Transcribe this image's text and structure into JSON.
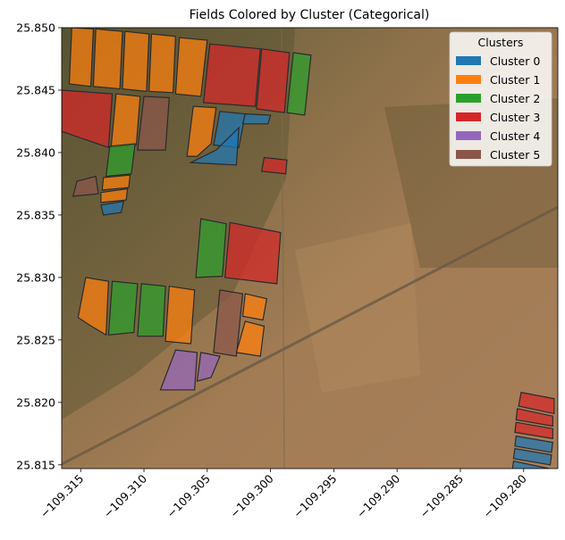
{
  "chart_data": {
    "type": "map",
    "title": "Fields Colored by Cluster (Categorical)",
    "xlabel": "",
    "ylabel": "",
    "xlim": [
      -109.3165,
      -109.2773
    ],
    "ylim": [
      25.8147,
      25.85
    ],
    "xticks": [
      -109.315,
      -109.31,
      -109.305,
      -109.3,
      -109.295,
      -109.29,
      -109.285,
      -109.28
    ],
    "xtick_labels": [
      "−109.315",
      "−109.310",
      "−109.305",
      "−109.300",
      "−109.295",
      "−109.290",
      "−109.285",
      "−109.280"
    ],
    "yticks": [
      25.815,
      25.82,
      25.825,
      25.83,
      25.835,
      25.84,
      25.845,
      25.85
    ],
    "ytick_labels": [
      "25.815",
      "25.820",
      "25.825",
      "25.830",
      "25.835",
      "25.840",
      "25.845",
      "25.850"
    ],
    "legend": {
      "title": "Clusters",
      "placement": "top-right",
      "entries": [
        {
          "label": "Cluster 0",
          "color": "#1f77b4"
        },
        {
          "label": "Cluster 1",
          "color": "#ff7f0e"
        },
        {
          "label": "Cluster 2",
          "color": "#2ca02c"
        },
        {
          "label": "Cluster 3",
          "color": "#d62728"
        },
        {
          "label": "Cluster 4",
          "color": "#9467bd"
        },
        {
          "label": "Cluster 5",
          "color": "#8c564b"
        }
      ]
    },
    "background": "satellite imagery",
    "fields": [
      {
        "cluster": 1,
        "coords": [
          [
            -109.3157,
            25.85
          ],
          [
            -109.314,
            25.8499
          ],
          [
            -109.3142,
            25.8453
          ],
          [
            -109.3159,
            25.8455
          ]
        ]
      },
      {
        "cluster": 1,
        "coords": [
          [
            -109.3138,
            25.8499
          ],
          [
            -109.3117,
            25.8497
          ],
          [
            -109.3119,
            25.8451
          ],
          [
            -109.314,
            25.8453
          ]
        ]
      },
      {
        "cluster": 1,
        "coords": [
          [
            -109.3115,
            25.8497
          ],
          [
            -109.3096,
            25.8495
          ],
          [
            -109.3098,
            25.8449
          ],
          [
            -109.3117,
            25.8451
          ]
        ]
      },
      {
        "cluster": 1,
        "coords": [
          [
            -109.3094,
            25.8495
          ],
          [
            -109.3075,
            25.8493
          ],
          [
            -109.3077,
            25.8448
          ],
          [
            -109.3096,
            25.8449
          ]
        ]
      },
      {
        "cluster": 1,
        "coords": [
          [
            -109.3072,
            25.8492
          ],
          [
            -109.305,
            25.849
          ],
          [
            -109.3055,
            25.8445
          ],
          [
            -109.3075,
            25.8447
          ]
        ]
      },
      {
        "cluster": 3,
        "coords": [
          [
            -109.3048,
            25.8487
          ],
          [
            -109.3008,
            25.8483
          ],
          [
            -109.3012,
            25.8437
          ],
          [
            -109.3053,
            25.844
          ]
        ]
      },
      {
        "cluster": 3,
        "coords": [
          [
            -109.3007,
            25.8483
          ],
          [
            -109.2985,
            25.848
          ],
          [
            -109.2989,
            25.8432
          ],
          [
            -109.3011,
            25.8435
          ]
        ]
      },
      {
        "cluster": 2,
        "coords": [
          [
            -109.2982,
            25.848
          ],
          [
            -109.2968,
            25.8478
          ],
          [
            -109.2973,
            25.843
          ],
          [
            -109.2987,
            25.8432
          ]
        ]
      },
      {
        "cluster": 3,
        "coords": [
          [
            -109.3165,
            25.845
          ],
          [
            -109.3125,
            25.8447
          ],
          [
            -109.3128,
            25.8404
          ],
          [
            -109.3165,
            25.8417
          ]
        ]
      },
      {
        "cluster": 1,
        "coords": [
          [
            -109.3122,
            25.8447
          ],
          [
            -109.3103,
            25.8445
          ],
          [
            -109.3106,
            25.8406
          ],
          [
            -109.3126,
            25.8404
          ]
        ]
      },
      {
        "cluster": 5,
        "coords": [
          [
            -109.31,
            25.8445
          ],
          [
            -109.308,
            25.8444
          ],
          [
            -109.3083,
            25.8402
          ],
          [
            -109.3105,
            25.8402
          ]
        ]
      },
      {
        "cluster": 1,
        "coords": [
          [
            -109.3061,
            25.8437
          ],
          [
            -109.3043,
            25.8436
          ],
          [
            -109.3047,
            25.8407
          ],
          [
            -109.3058,
            25.8397
          ],
          [
            -109.3066,
            25.8397
          ]
        ]
      },
      {
        "cluster": 0,
        "coords": [
          [
            -109.304,
            25.8433
          ],
          [
            -109.302,
            25.8431
          ],
          [
            -109.3025,
            25.8404
          ],
          [
            -109.3045,
            25.8406
          ]
        ]
      },
      {
        "cluster": 0,
        "coords": [
          [
            -109.302,
            25.8431
          ],
          [
            -109.3,
            25.843
          ],
          [
            -109.3002,
            25.8423
          ],
          [
            -109.3022,
            25.8423
          ]
        ]
      },
      {
        "cluster": 0,
        "coords": [
          [
            -109.3025,
            25.842
          ],
          [
            -109.3043,
            25.8402
          ],
          [
            -109.3063,
            25.8392
          ],
          [
            -109.3027,
            25.839
          ]
        ]
      },
      {
        "cluster": 3,
        "coords": [
          [
            -109.3005,
            25.8396
          ],
          [
            -109.2987,
            25.8394
          ],
          [
            -109.2988,
            25.8383
          ],
          [
            -109.3007,
            25.8385
          ]
        ]
      },
      {
        "cluster": 2,
        "coords": [
          [
            -109.3127,
            25.8405
          ],
          [
            -109.3107,
            25.8407
          ],
          [
            -109.311,
            25.8383
          ],
          [
            -109.313,
            25.8381
          ]
        ]
      },
      {
        "cluster": 1,
        "coords": [
          [
            -109.3132,
            25.838
          ],
          [
            -109.3111,
            25.8382
          ],
          [
            -109.3112,
            25.8372
          ],
          [
            -109.3133,
            25.837
          ]
        ]
      },
      {
        "cluster": 1,
        "coords": [
          [
            -109.3134,
            25.8368
          ],
          [
            -109.3113,
            25.8371
          ],
          [
            -109.3114,
            25.8362
          ],
          [
            -109.3134,
            25.836
          ]
        ]
      },
      {
        "cluster": 5,
        "coords": [
          [
            -109.3153,
            25.8377
          ],
          [
            -109.3138,
            25.8381
          ],
          [
            -109.3136,
            25.8367
          ],
          [
            -109.3156,
            25.8365
          ]
        ]
      },
      {
        "cluster": 0,
        "coords": [
          [
            -109.3134,
            25.8358
          ],
          [
            -109.3116,
            25.8361
          ],
          [
            -109.3118,
            25.8352
          ],
          [
            -109.3132,
            25.835
          ]
        ]
      },
      {
        "cluster": 2,
        "coords": [
          [
            -109.3055,
            25.8347
          ],
          [
            -109.3035,
            25.8343
          ],
          [
            -109.3038,
            25.8301
          ],
          [
            -109.3059,
            25.83
          ]
        ]
      },
      {
        "cluster": 3,
        "coords": [
          [
            -109.3032,
            25.8344
          ],
          [
            -109.2992,
            25.8336
          ],
          [
            -109.2995,
            25.8295
          ],
          [
            -109.3036,
            25.83
          ]
        ]
      },
      {
        "cluster": 1,
        "coords": [
          [
            -109.3146,
            25.83
          ],
          [
            -109.3128,
            25.8297
          ],
          [
            -109.313,
            25.8254
          ],
          [
            -109.3143,
            25.8262
          ],
          [
            -109.3152,
            25.8268
          ]
        ]
      },
      {
        "cluster": 2,
        "coords": [
          [
            -109.3125,
            25.8297
          ],
          [
            -109.3105,
            25.8295
          ],
          [
            -109.3108,
            25.8256
          ],
          [
            -109.3128,
            25.8254
          ]
        ]
      },
      {
        "cluster": 2,
        "coords": [
          [
            -109.3102,
            25.8295
          ],
          [
            -109.3083,
            25.8293
          ],
          [
            -109.3085,
            25.8253
          ],
          [
            -109.3105,
            25.8253
          ]
        ]
      },
      {
        "cluster": 1,
        "coords": [
          [
            -109.308,
            25.8293
          ],
          [
            -109.306,
            25.829
          ],
          [
            -109.3063,
            25.8247
          ],
          [
            -109.3083,
            25.8249
          ]
        ]
      },
      {
        "cluster": 5,
        "coords": [
          [
            -109.304,
            25.829
          ],
          [
            -109.3022,
            25.8287
          ],
          [
            -109.3027,
            25.8237
          ],
          [
            -109.3045,
            25.824
          ]
        ]
      },
      {
        "cluster": 1,
        "coords": [
          [
            -109.302,
            25.8287
          ],
          [
            -109.3003,
            25.8283
          ],
          [
            -109.3006,
            25.8266
          ],
          [
            -109.3022,
            25.8269
          ]
        ]
      },
      {
        "cluster": 1,
        "coords": [
          [
            -109.302,
            25.8265
          ],
          [
            -109.3005,
            25.8261
          ],
          [
            -109.3008,
            25.8237
          ],
          [
            -109.3027,
            25.824
          ]
        ]
      },
      {
        "cluster": 4,
        "coords": [
          [
            -109.3075,
            25.8242
          ],
          [
            -109.3058,
            25.824
          ],
          [
            -109.306,
            25.821
          ],
          [
            -109.3087,
            25.821
          ]
        ]
      },
      {
        "cluster": 4,
        "coords": [
          [
            -109.3055,
            25.824
          ],
          [
            -109.304,
            25.8237
          ],
          [
            -109.3047,
            25.822
          ],
          [
            -109.3058,
            25.8217
          ]
        ]
      },
      {
        "cluster": 3,
        "coords": [
          [
            -109.2802,
            25.8208
          ],
          [
            -109.2776,
            25.8203
          ],
          [
            -109.2776,
            25.8191
          ],
          [
            -109.2804,
            25.8197
          ]
        ]
      },
      {
        "cluster": 3,
        "coords": [
          [
            -109.2805,
            25.8195
          ],
          [
            -109.2777,
            25.8189
          ],
          [
            -109.2777,
            25.8181
          ],
          [
            -109.2806,
            25.8186
          ]
        ]
      },
      {
        "cluster": 3,
        "coords": [
          [
            -109.2806,
            25.8184
          ],
          [
            -109.2777,
            25.8179
          ],
          [
            -109.2777,
            25.8171
          ],
          [
            -109.2807,
            25.8176
          ]
        ]
      },
      {
        "cluster": 0,
        "coords": [
          [
            -109.2806,
            25.8173
          ],
          [
            -109.2777,
            25.8168
          ],
          [
            -109.2778,
            25.816
          ],
          [
            -109.2807,
            25.8165
          ]
        ]
      },
      {
        "cluster": 0,
        "coords": [
          [
            -109.2807,
            25.8163
          ],
          [
            -109.2778,
            25.8158
          ],
          [
            -109.2779,
            25.815
          ],
          [
            -109.2808,
            25.8155
          ]
        ]
      },
      {
        "cluster": 0,
        "coords": [
          [
            -109.2808,
            25.8153
          ],
          [
            -109.278,
            25.8147
          ],
          [
            -109.278,
            25.8147
          ],
          [
            -109.2809,
            25.8145
          ]
        ]
      }
    ]
  }
}
